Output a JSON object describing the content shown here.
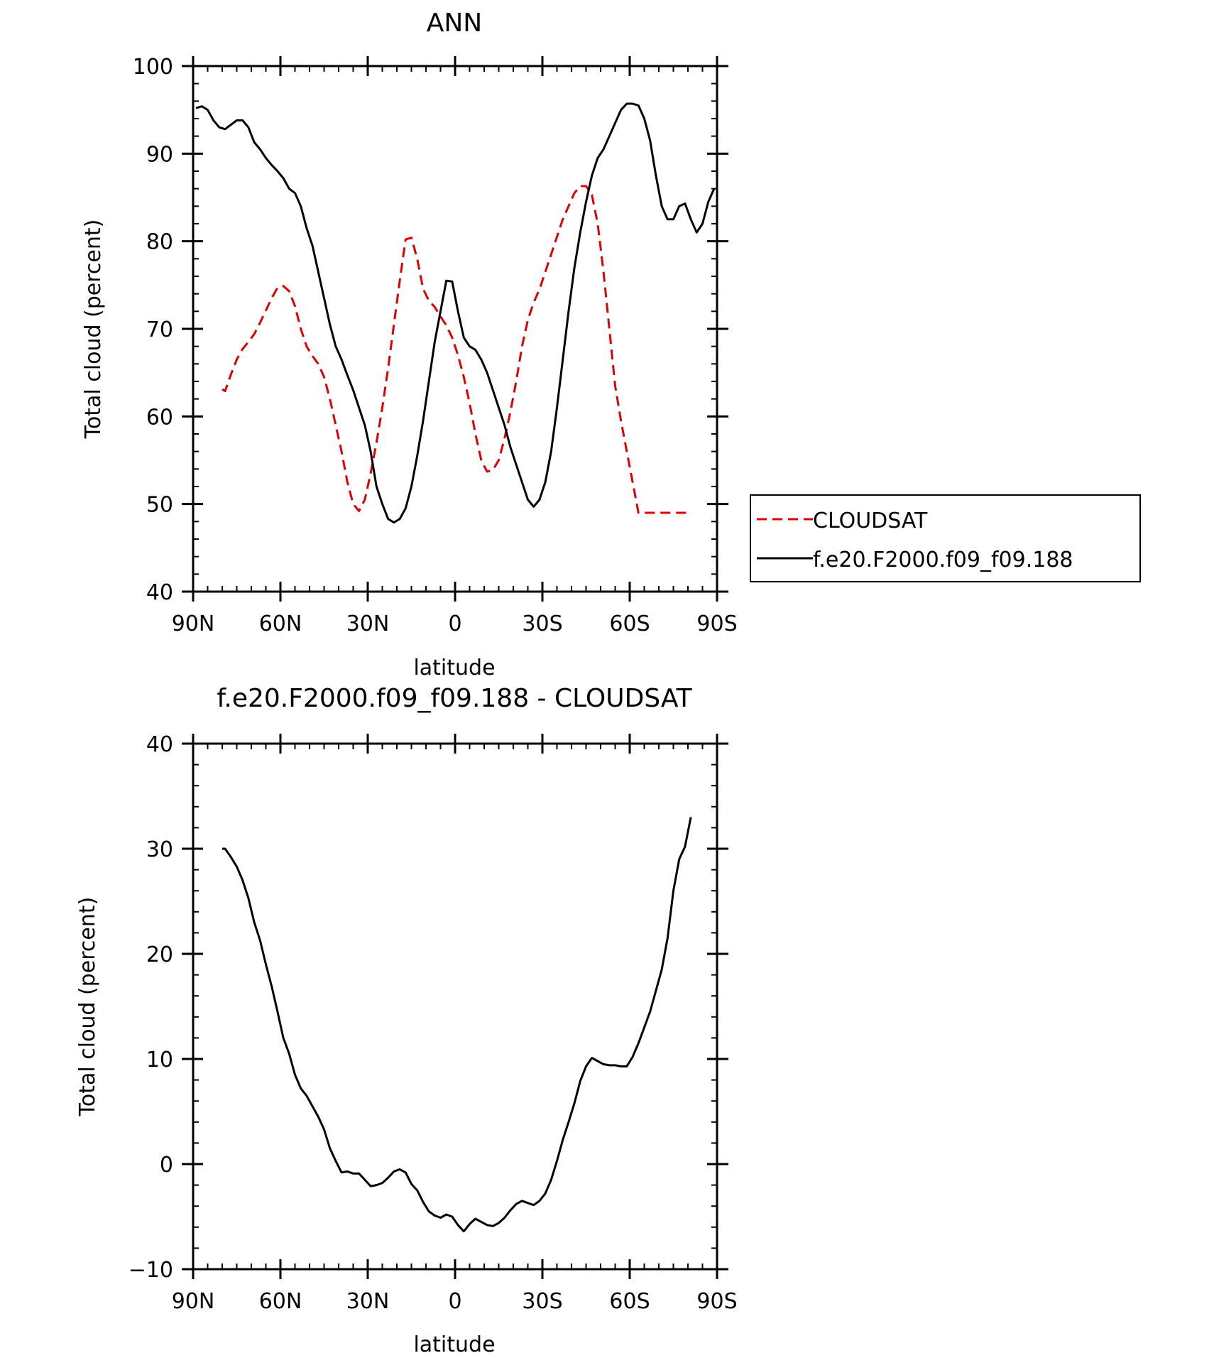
{
  "colors": {
    "background": "#ffffff",
    "axis": "#000000",
    "model": "#000000",
    "obs": "#e00000"
  },
  "chart_data": [
    {
      "type": "line",
      "title": "ANN",
      "xlabel": "latitude",
      "ylabel": "Total cloud (percent)",
      "xlim": [
        90,
        -90
      ],
      "ylim": [
        40,
        100
      ],
      "xticks": [
        90,
        60,
        30,
        0,
        -30,
        -60,
        -90
      ],
      "xticklabels": [
        "90N",
        "60N",
        "30N",
        "0",
        "30S",
        "60S",
        "90S"
      ],
      "yticks": [
        40,
        50,
        60,
        70,
        80,
        90,
        100
      ],
      "yticklabels": [
        "40",
        "50",
        "60",
        "70",
        "80",
        "90",
        "100"
      ],
      "grid": false,
      "legend_position": "right",
      "series": [
        {
          "name": "CLOUDSAT",
          "style": "dashed",
          "color": "#e00000",
          "x": [
            80,
            79,
            77,
            75,
            73,
            71,
            69,
            67,
            65,
            63,
            61,
            59,
            57,
            55,
            53,
            51,
            49,
            47,
            45,
            43,
            41,
            39,
            37,
            35,
            33,
            31,
            29,
            27,
            25,
            23,
            21,
            19,
            17,
            15,
            13,
            11,
            9,
            7,
            5,
            3,
            1,
            -1,
            -3,
            -5,
            -7,
            -9,
            -11,
            -13,
            -15,
            -17,
            -19,
            -21,
            -23,
            -25,
            -27,
            -29,
            -31,
            -33,
            -35,
            -37,
            -39,
            -41,
            -43,
            -45,
            -47,
            -49,
            -51,
            -53,
            -55,
            -57,
            -59,
            -61,
            -63,
            -65,
            -67,
            -69,
            -71,
            -73,
            -75,
            -77,
            -79,
            -81
          ],
          "y": [
            63.1,
            62.9,
            64.8,
            66.5,
            67.7,
            68.5,
            69.4,
            70.7,
            72.1,
            73.5,
            74.7,
            74.9,
            74.3,
            72.6,
            70.0,
            68.0,
            66.9,
            66.0,
            64.5,
            62.0,
            59.0,
            56.0,
            52.5,
            50.0,
            49.2,
            50.5,
            53.5,
            57.0,
            61.0,
            65.5,
            70.5,
            75.5,
            80.2,
            80.4,
            78.0,
            74.6,
            73.2,
            72.5,
            71.4,
            70.4,
            69.0,
            67.0,
            64.5,
            61.5,
            58.0,
            55.0,
            53.7,
            53.9,
            55.0,
            57.5,
            60.5,
            64.0,
            68.0,
            71.0,
            73.0,
            74.5,
            76.5,
            78.5,
            80.5,
            82.5,
            84.0,
            85.5,
            86.3,
            86.3,
            85.3,
            82.0,
            76.5,
            70.0,
            63.5,
            59.5,
            56.0,
            52.5,
            49.0,
            49.0,
            49.0,
            49.0,
            49.0,
            49.0,
            49.0,
            49.0,
            49.0,
            49.0
          ]
        },
        {
          "name": "f.e20.F2000.f09_f09.188",
          "style": "solid",
          "color": "#000000",
          "x": [
            89,
            87,
            85,
            83,
            81,
            79,
            77,
            75,
            73,
            71,
            69,
            67,
            65,
            63,
            61,
            59,
            57,
            55,
            53,
            51,
            49,
            47,
            45,
            43,
            41,
            39,
            37,
            35,
            33,
            31,
            29,
            27,
            25,
            23,
            21,
            19,
            17,
            15,
            13,
            11,
            9,
            7,
            5,
            3,
            1,
            -1,
            -3,
            -5,
            -7,
            -9,
            -11,
            -13,
            -15,
            -17,
            -19,
            -21,
            -23,
            -25,
            -27,
            -29,
            -31,
            -33,
            -35,
            -37,
            -39,
            -41,
            -43,
            -45,
            -47,
            -49,
            -51,
            -53,
            -55,
            -57,
            -59,
            -61,
            -63,
            -65,
            -67,
            -69,
            -71,
            -73,
            -75,
            -77,
            -79,
            -81,
            -83,
            -85,
            -87,
            -89
          ],
          "y": [
            95.2,
            95.4,
            95.0,
            93.8,
            93.0,
            92.8,
            93.3,
            93.8,
            93.8,
            93.0,
            91.3,
            90.5,
            89.5,
            88.7,
            88.0,
            87.2,
            86.0,
            85.5,
            84.0,
            81.5,
            79.5,
            76.5,
            73.5,
            70.5,
            68.0,
            66.5,
            64.7,
            63.0,
            61.0,
            59.0,
            56.0,
            52.0,
            50.0,
            48.3,
            47.9,
            48.3,
            49.5,
            52.0,
            55.5,
            59.5,
            64.0,
            68.5,
            72.0,
            75.5,
            75.4,
            72.0,
            69.0,
            68.0,
            67.6,
            66.5,
            65.0,
            63.0,
            61.0,
            59.0,
            56.5,
            54.5,
            52.5,
            50.5,
            49.7,
            50.5,
            52.5,
            56.0,
            61.0,
            66.5,
            72.0,
            77.0,
            81.0,
            84.5,
            87.5,
            89.5,
            90.5,
            92.0,
            93.5,
            95.0,
            95.7,
            95.7,
            95.5,
            94.0,
            91.5,
            87.5,
            84.0,
            82.5,
            82.5,
            84.0,
            84.3,
            82.5,
            81.0,
            82.0,
            84.5,
            86.0
          ]
        }
      ]
    },
    {
      "type": "line",
      "title": "f.e20.F2000.f09_f09.188 - CLOUDSAT",
      "xlabel": "latitude",
      "ylabel": "Total cloud (percent)",
      "xlim": [
        90,
        -90
      ],
      "ylim": [
        -10,
        40
      ],
      "xticks": [
        90,
        60,
        30,
        0,
        -30,
        -60,
        -90
      ],
      "xticklabels": [
        "90N",
        "60N",
        "30N",
        "0",
        "30S",
        "60S",
        "90S"
      ],
      "yticks": [
        -10,
        0,
        10,
        20,
        30,
        40
      ],
      "yticklabels": [
        "−10",
        "0",
        "10",
        "20",
        "30",
        "40"
      ],
      "grid": false,
      "series": [
        {
          "style": "solid",
          "color": "#000000",
          "x": [
            80,
            79,
            77,
            75,
            73,
            71,
            69,
            67,
            65,
            63,
            61,
            59,
            57,
            55,
            53,
            51,
            49,
            47,
            45,
            43,
            41,
            39,
            37,
            35,
            33,
            31,
            29,
            27,
            25,
            23,
            21,
            19,
            17,
            15,
            13,
            11,
            9,
            7,
            5,
            3,
            1,
            -1,
            -3,
            -5,
            -7,
            -9,
            -11,
            -13,
            -15,
            -17,
            -19,
            -21,
            -23,
            -25,
            -27,
            -29,
            -31,
            -33,
            -35,
            -37,
            -39,
            -41,
            -43,
            -45,
            -47,
            -49,
            -51,
            -53,
            -55,
            -57,
            -59,
            -61,
            -63,
            -65,
            -67,
            -69,
            -71,
            -73,
            -75,
            -77,
            -79,
            -81
          ],
          "y": [
            30.0,
            30.0,
            29.2,
            28.3,
            27.0,
            25.3,
            23.0,
            21.3,
            19.0,
            16.9,
            14.5,
            12.0,
            10.5,
            8.5,
            7.2,
            6.5,
            5.5,
            4.5,
            3.3,
            1.5,
            0.3,
            -0.8,
            -0.7,
            -0.9,
            -0.9,
            -1.5,
            -2.1,
            -2.0,
            -1.8,
            -1.3,
            -0.7,
            -0.5,
            -0.8,
            -1.9,
            -2.5,
            -3.6,
            -4.5,
            -4.9,
            -5.1,
            -4.8,
            -5.0,
            -5.8,
            -6.4,
            -5.7,
            -5.2,
            -5.5,
            -5.8,
            -5.9,
            -5.6,
            -5.1,
            -4.4,
            -3.8,
            -3.5,
            -3.7,
            -3.9,
            -3.5,
            -2.8,
            -1.5,
            0.3,
            2.3,
            4.0,
            5.8,
            7.9,
            9.3,
            10.1,
            9.8,
            9.5,
            9.4,
            9.4,
            9.3,
            9.3,
            10.2,
            11.5,
            13.0,
            14.5,
            16.5,
            18.5,
            21.5,
            26.0,
            29.0,
            30.2,
            33.0
          ]
        }
      ]
    }
  ]
}
